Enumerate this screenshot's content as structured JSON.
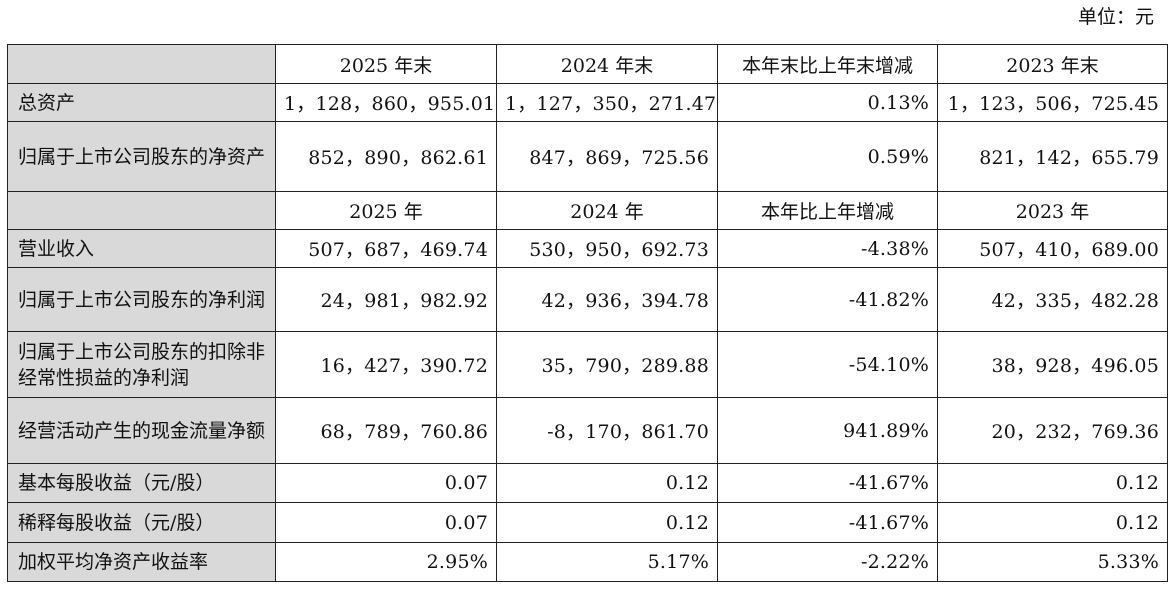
{
  "unit_label": "单位：元",
  "header1": [
    "2025 年末",
    "2024 年末",
    "本年末比上年末增减",
    "2023 年末"
  ],
  "balance_rows": [
    {
      "label": "总资产",
      "values": [
        "1，128，860，955.01",
        "1，127，350，271.47",
        "0.13%",
        "1，123，506，725.45"
      ]
    },
    {
      "label": "归属于上市公司股东的净资产",
      "values": [
        "852，890，862.61",
        "847，869，725.56",
        "0.59%",
        "821，142，655.79"
      ]
    }
  ],
  "header2": [
    "2025 年",
    "2024 年",
    "本年比上年增减",
    "2023 年"
  ],
  "income_rows": [
    {
      "label": "营业收入",
      "values": [
        "507，687，469.74",
        "530，950，692.73",
        "-4.38%",
        "507，410，689.00"
      ]
    },
    {
      "label": "归属于上市公司股东的净利润",
      "values": [
        "24，981，982.92",
        "42，936，394.78",
        "-41.82%",
        "42，335，482.28"
      ]
    },
    {
      "label": "归属于上市公司股东的扣除非经常性损益的净利润",
      "values": [
        "16，427，390.72",
        "35，790，289.88",
        "-54.10%",
        "38，928，496.05"
      ]
    },
    {
      "label": "经营活动产生的现金流量净额",
      "values": [
        "68，789，760.86",
        "-8，170，861.70",
        "941.89%",
        "20，232，769.36"
      ]
    },
    {
      "label": "基本每股收益（元/股）",
      "values": [
        "0.07",
        "0.12",
        "-41.67%",
        "0.12"
      ]
    },
    {
      "label": "稀释每股收益（元/股）",
      "values": [
        "0.07",
        "0.12",
        "-41.67%",
        "0.12"
      ]
    },
    {
      "label": "加权平均净资产收益率",
      "values": [
        "2.95%",
        "5.17%",
        "-2.22%",
        "5.33%"
      ]
    }
  ]
}
